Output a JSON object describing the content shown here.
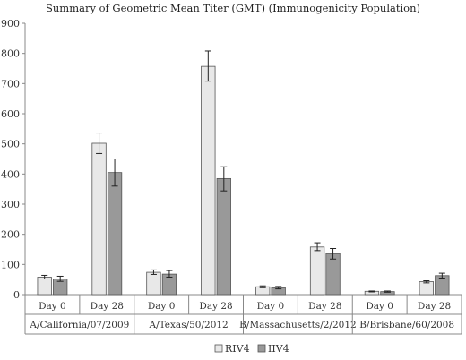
{
  "chart_data": {
    "type": "bar",
    "title": "Summary of Geometric Mean Titer (GMT) (Immunogenicity Population)",
    "ylim": [
      0,
      900
    ],
    "yticks": [
      0,
      100,
      200,
      300,
      400,
      500,
      600,
      700,
      800,
      900
    ],
    "gridlines": false,
    "legend_position": "bottom",
    "groups": [
      {
        "label": "A/California/07/2009",
        "days": [
          "Day 0",
          "Day 28"
        ]
      },
      {
        "label": "A/Texas/50/2012",
        "days": [
          "Day 0",
          "Day 28"
        ]
      },
      {
        "label": "B/Massachusetts/2/2012",
        "days": [
          "Day 0",
          "Day 28"
        ]
      },
      {
        "label": "B/Brisbane/60/2008",
        "days": [
          "Day 0",
          "Day 28"
        ]
      }
    ],
    "series": [
      {
        "name": "RIV4",
        "color": "#e8e8e8",
        "values": [
          58,
          502,
          74,
          757,
          26,
          158,
          11,
          43
        ],
        "errors": [
          [
            52,
            64
          ],
          [
            468,
            536
          ],
          [
            67,
            82
          ],
          [
            708,
            808
          ],
          [
            23,
            29
          ],
          [
            146,
            172
          ],
          [
            9,
            12
          ],
          [
            39,
            46
          ]
        ]
      },
      {
        "name": "IIV4",
        "color": "#999999",
        "values": [
          52,
          405,
          68,
          385,
          23,
          136,
          10,
          63
        ],
        "errors": [
          [
            44,
            61
          ],
          [
            360,
            450
          ],
          [
            58,
            80
          ],
          [
            344,
            424
          ],
          [
            19,
            27
          ],
          [
            118,
            153
          ],
          [
            8,
            12
          ],
          [
            55,
            71
          ]
        ]
      }
    ]
  }
}
